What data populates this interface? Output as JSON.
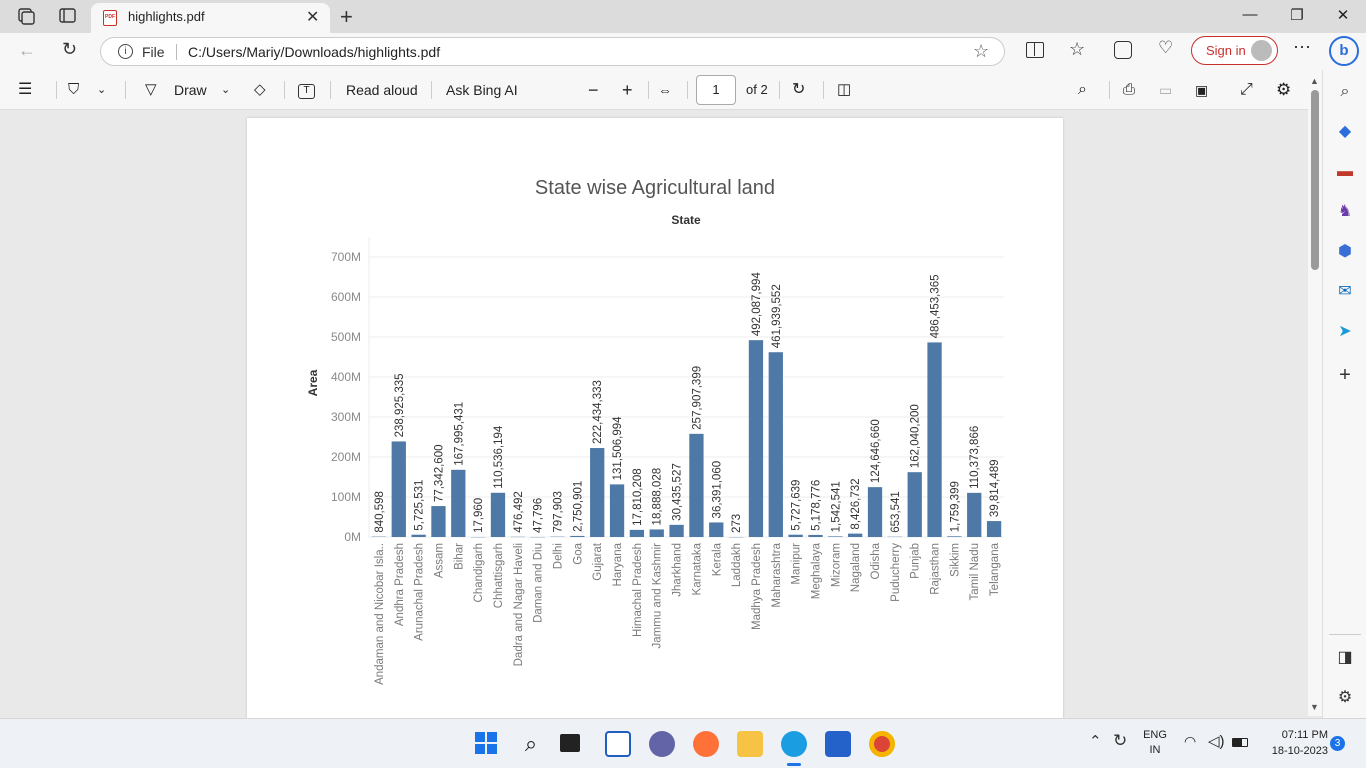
{
  "browser": {
    "tab_title": "highlights.pdf",
    "pdf_badge": "PDF",
    "url_scheme_label": "File",
    "url": "C:/Users/Mariy/Downloads/highlights.pdf",
    "signin_label": "Sign in"
  },
  "pdf_toolbar": {
    "draw_label": "Draw",
    "read_aloud_label": "Read aloud",
    "ask_bing_label": "Ask Bing AI",
    "page_number": "1",
    "page_total": "of 2"
  },
  "chart_data": {
    "type": "bar",
    "title": "State wise Agricultural land",
    "subtitle": "State",
    "xlabel": "",
    "ylabel": "Area",
    "ylim": [
      0,
      700000000
    ],
    "yticks": [
      "0M",
      "100M",
      "200M",
      "300M",
      "400M",
      "500M",
      "600M",
      "700M"
    ],
    "grid": true,
    "bar_color": "#4e79a7",
    "categories": [
      "Andaman and Nicobar Isla..",
      "Andhra Pradesh",
      "Arunachal Pradesh",
      "Assam",
      "Bihar",
      "Chandigarh",
      "Chhattisgarh",
      "Dadra and Nagar Haveli",
      "Daman and Diu",
      "Delhi",
      "Goa",
      "Gujarat",
      "Haryana",
      "Himachal Pradesh",
      "Jammu and Kashmir",
      "Jharkhand",
      "Karnataka",
      "Kerala",
      "Laddakh",
      "Madhya Pradesh",
      "Maharashtra",
      "Manipur",
      "Meghalaya",
      "Mizoram",
      "Nagaland",
      "Odisha",
      "Puducherry",
      "Punjab",
      "Rajasthan",
      "Sikkim",
      "Tamil Nadu",
      "Telangana"
    ],
    "values": [
      840598,
      238925335,
      5725531,
      77342600,
      167995431,
      17960,
      110536194,
      476492,
      47796,
      797903,
      2750901,
      222434333,
      131506994,
      17810208,
      18888028,
      30435527,
      257907399,
      36391060,
      273,
      492087994,
      461939552,
      5727639,
      5178776,
      1542541,
      8426732,
      124646660,
      653541,
      162040200,
      486453365,
      1759399,
      110373866,
      39814489
    ],
    "labels": [
      "840,598",
      "238,925,335",
      "5,725,531",
      "77,342,600",
      "167,995,431",
      "17,960",
      "110,536,194",
      "476,492",
      "47,796",
      "797,903",
      "2,750,901",
      "222,434,333",
      "131,506,994",
      "17,810,208",
      "18,888,028",
      "30,435,527",
      "257,907,399",
      "36,391,060",
      "273",
      "492,087,994",
      "461,939,552",
      "5,727,639",
      "5,178,776",
      "1,542,541",
      "8,426,732",
      "124,646,660",
      "653,541",
      "162,040,200",
      "486,453,365",
      "1,759,399",
      "110,373,866",
      "39,814,489"
    ]
  },
  "taskbar": {
    "lang_top": "ENG",
    "lang_bottom": "IN",
    "time": "07:11 PM",
    "date": "18-10-2023",
    "notifications": "3"
  }
}
